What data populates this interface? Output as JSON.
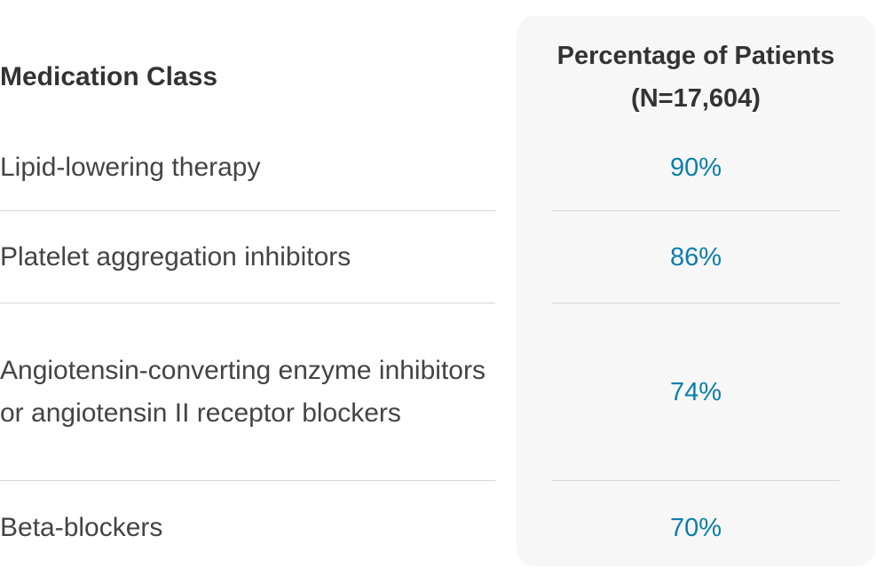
{
  "table": {
    "header": {
      "class": "Medication Class",
      "percentage": "Percentage of Patients (N=17,604)"
    },
    "rows": [
      {
        "class": "Lipid-lowering therapy",
        "percentage": "90%"
      },
      {
        "class": "Platelet aggregation inhibitors",
        "percentage": "86%"
      },
      {
        "class": "Angiotensin-converting enzyme inhibitors or angiotensin II receptor blockers",
        "percentage": "74%"
      },
      {
        "class": "Beta-blockers",
        "percentage": "70%"
      }
    ]
  }
}
